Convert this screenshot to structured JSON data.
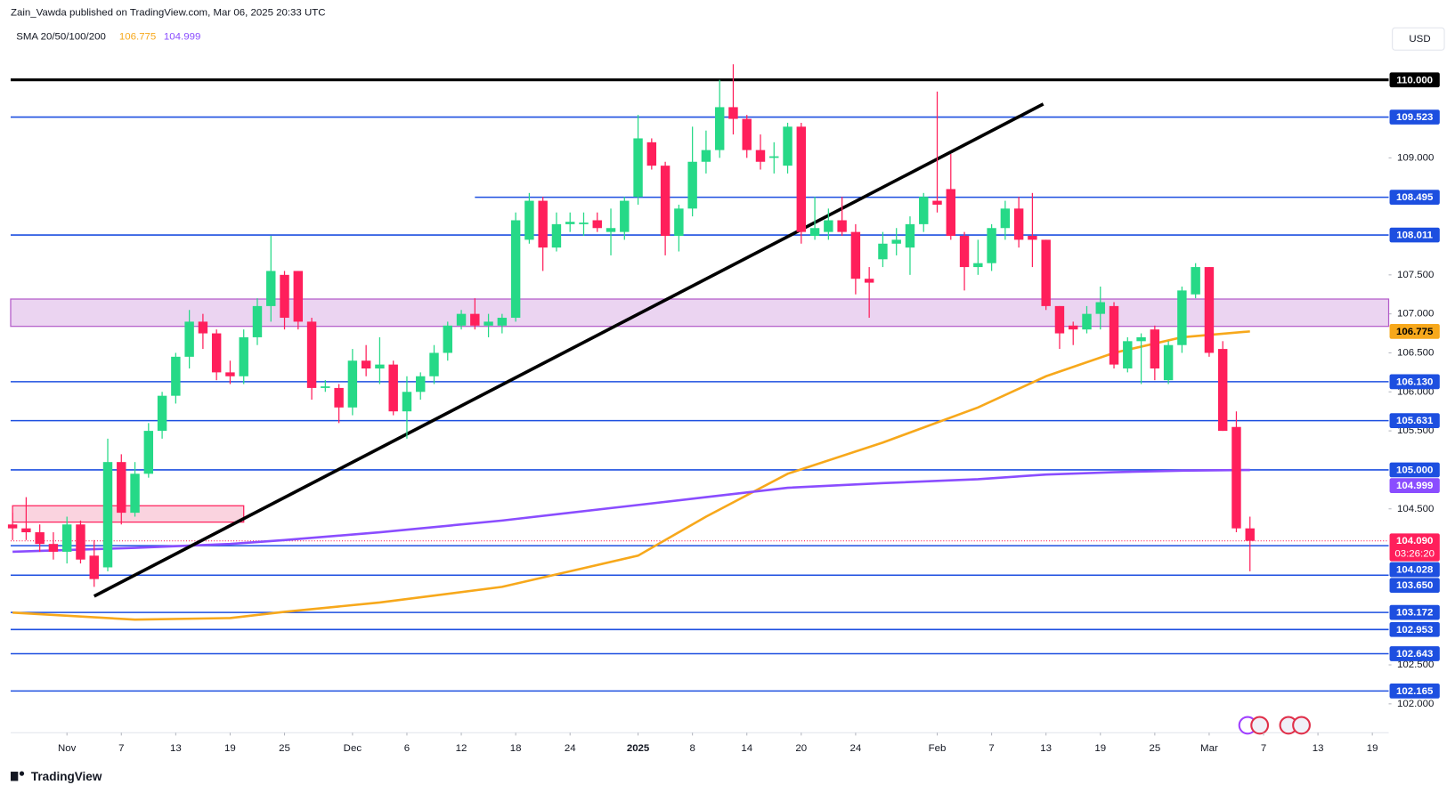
{
  "header": {
    "publisher": "Zain_Vawda published on TradingView.com, Mar 06, 2025 20:33 UTC",
    "indicator": "SMA 20/50/100/200",
    "currency": "USD"
  },
  "footer": {
    "brand": "TradingView"
  },
  "chart_data": {
    "type": "candlestick",
    "ylim": [
      101.63,
      110.37
    ],
    "xlim": [
      -0.14,
      101.2
    ],
    "yticks": [
      {
        "value": 102,
        "label": "102.000"
      },
      {
        "value": 102.5,
        "label": "102.500"
      },
      {
        "value": 104.5,
        "label": "104.500"
      },
      {
        "value": 105.5,
        "label": "105.500"
      },
      {
        "value": 106,
        "label": "106.000"
      },
      {
        "value": 106.5,
        "label": "106.500"
      },
      {
        "value": 107,
        "label": "107.000"
      },
      {
        "value": 107.5,
        "label": "107.500"
      },
      {
        "value": 109,
        "label": "109.000"
      }
    ],
    "xticks": [
      {
        "value": 4,
        "label": "Nov"
      },
      {
        "value": 8,
        "label": "7"
      },
      {
        "value": 12,
        "label": "13"
      },
      {
        "value": 16,
        "label": "19"
      },
      {
        "value": 20,
        "label": "25"
      },
      {
        "value": 25,
        "label": "Dec"
      },
      {
        "value": 29,
        "label": "6"
      },
      {
        "value": 33,
        "label": "12"
      },
      {
        "value": 37,
        "label": "18"
      },
      {
        "value": 41,
        "label": "24"
      },
      {
        "value": 46,
        "label": "2025"
      },
      {
        "value": 50,
        "label": "8"
      },
      {
        "value": 54,
        "label": "14"
      },
      {
        "value": 58,
        "label": "20"
      },
      {
        "value": 62,
        "label": "24"
      },
      {
        "value": 68,
        "label": "Feb"
      },
      {
        "value": 72,
        "label": "7"
      },
      {
        "value": 76,
        "label": "13"
      },
      {
        "value": 80,
        "label": "19"
      },
      {
        "value": 84,
        "label": "25"
      },
      {
        "value": 88,
        "label": "Mar"
      },
      {
        "value": 92,
        "label": "7"
      },
      {
        "value": 96,
        "label": "13"
      },
      {
        "value": 100,
        "label": "19"
      }
    ],
    "up_color": "#26d987",
    "down_color": "#ff1f5b",
    "candles": [
      [
        104.3,
        104.45,
        104.1,
        104.25
      ],
      [
        104.25,
        104.65,
        104.1,
        104.2
      ],
      [
        104.2,
        104.3,
        103.95,
        104.05
      ],
      [
        104.05,
        104.2,
        103.85,
        103.95
      ],
      [
        103.95,
        104.4,
        103.8,
        104.3
      ],
      [
        104.3,
        104.35,
        103.8,
        103.85
      ],
      [
        103.9,
        104.1,
        103.5,
        103.6
      ],
      [
        103.75,
        105.4,
        103.7,
        105.1
      ],
      [
        105.1,
        105.2,
        104.3,
        104.45
      ],
      [
        104.45,
        105.1,
        104.4,
        104.95
      ],
      [
        104.95,
        105.6,
        104.9,
        105.5
      ],
      [
        105.5,
        106.0,
        105.4,
        105.95
      ],
      [
        105.95,
        106.5,
        105.85,
        106.45
      ],
      [
        106.45,
        107.05,
        106.3,
        106.9
      ],
      [
        106.9,
        107.0,
        106.55,
        106.75
      ],
      [
        106.75,
        106.8,
        106.15,
        106.25
      ],
      [
        106.25,
        106.4,
        106.1,
        106.2
      ],
      [
        106.2,
        106.8,
        106.1,
        106.7
      ],
      [
        106.7,
        107.2,
        106.6,
        107.1
      ],
      [
        107.1,
        108.0,
        106.9,
        107.55
      ],
      [
        107.5,
        107.55,
        106.8,
        106.95
      ],
      [
        107.55,
        107.55,
        106.8,
        106.9
      ],
      [
        106.9,
        106.95,
        105.9,
        106.05
      ],
      [
        106.05,
        106.15,
        106.0,
        106.07
      ],
      [
        106.05,
        106.1,
        105.6,
        105.8
      ],
      [
        105.8,
        106.55,
        105.7,
        106.4
      ],
      [
        106.4,
        106.6,
        106.2,
        106.3
      ],
      [
        106.3,
        106.7,
        106.1,
        106.35
      ],
      [
        106.35,
        106.4,
        105.7,
        105.75
      ],
      [
        105.75,
        106.2,
        105.4,
        106.0
      ],
      [
        106.0,
        106.25,
        105.9,
        106.2
      ],
      [
        106.2,
        106.6,
        106.1,
        106.5
      ],
      [
        106.5,
        106.9,
        106.4,
        106.85
      ],
      [
        106.85,
        107.05,
        106.8,
        107.0
      ],
      [
        107.0,
        107.2,
        106.8,
        106.85
      ],
      [
        106.85,
        107.0,
        106.7,
        106.9
      ],
      [
        106.85,
        107.0,
        106.75,
        106.95
      ],
      [
        106.95,
        108.3,
        106.9,
        108.2
      ],
      [
        107.95,
        108.55,
        107.9,
        108.45
      ],
      [
        108.45,
        108.5,
        107.55,
        107.85
      ],
      [
        107.85,
        108.3,
        107.8,
        108.15
      ],
      [
        108.15,
        108.3,
        108.05,
        108.18
      ],
      [
        108.15,
        108.3,
        108.0,
        108.17
      ],
      [
        108.2,
        108.3,
        108.05,
        108.1
      ],
      [
        108.05,
        108.35,
        107.75,
        108.1
      ],
      [
        108.05,
        108.5,
        107.95,
        108.45
      ],
      [
        108.5,
        109.55,
        108.4,
        109.25
      ],
      [
        109.2,
        109.25,
        108.85,
        108.9
      ],
      [
        108.9,
        108.95,
        107.75,
        108.0
      ],
      [
        108.0,
        108.4,
        107.8,
        108.35
      ],
      [
        108.35,
        109.4,
        108.25,
        108.95
      ],
      [
        108.95,
        109.35,
        108.8,
        109.1
      ],
      [
        109.1,
        110.0,
        109.0,
        109.65
      ],
      [
        109.65,
        110.2,
        109.3,
        109.5
      ],
      [
        109.5,
        109.55,
        109.0,
        109.1
      ],
      [
        109.1,
        109.3,
        108.85,
        108.95
      ],
      [
        109.0,
        109.2,
        108.8,
        109.02
      ],
      [
        108.9,
        109.45,
        108.8,
        109.4
      ],
      [
        109.4,
        109.45,
        107.9,
        108.05
      ],
      [
        108.0,
        108.5,
        107.95,
        108.1
      ],
      [
        108.05,
        108.35,
        107.95,
        108.2
      ],
      [
        108.2,
        108.5,
        108.0,
        108.05
      ],
      [
        108.05,
        108.15,
        107.25,
        107.45
      ],
      [
        107.45,
        107.6,
        106.95,
        107.4
      ],
      [
        107.7,
        108.05,
        107.6,
        107.9
      ],
      [
        107.9,
        108.1,
        107.75,
        107.95
      ],
      [
        107.85,
        108.25,
        107.5,
        108.15
      ],
      [
        108.15,
        108.55,
        108.05,
        108.5
      ],
      [
        108.45,
        109.85,
        108.3,
        108.4
      ],
      [
        108.6,
        109.05,
        107.95,
        108.0
      ],
      [
        108.0,
        108.05,
        107.3,
        107.6
      ],
      [
        107.6,
        107.95,
        107.5,
        107.65
      ],
      [
        107.65,
        108.15,
        107.55,
        108.1
      ],
      [
        108.1,
        108.45,
        107.95,
        108.35
      ],
      [
        108.35,
        108.5,
        107.85,
        107.95
      ],
      [
        108.0,
        108.55,
        107.6,
        107.95
      ],
      [
        107.95,
        107.95,
        107.05,
        107.1
      ],
      [
        107.1,
        107.1,
        106.55,
        106.75
      ],
      [
        106.85,
        106.9,
        106.6,
        106.8
      ],
      [
        106.8,
        107.1,
        106.75,
        107.0
      ],
      [
        107.0,
        107.35,
        106.8,
        107.15
      ],
      [
        107.1,
        107.15,
        106.3,
        106.35
      ],
      [
        106.3,
        106.7,
        106.25,
        106.65
      ],
      [
        106.65,
        106.75,
        106.1,
        106.7
      ],
      [
        106.8,
        106.85,
        106.15,
        106.3
      ],
      [
        106.15,
        106.65,
        106.1,
        106.6
      ],
      [
        106.6,
        107.35,
        106.5,
        107.3
      ],
      [
        107.25,
        107.65,
        107.2,
        107.6
      ],
      [
        107.6,
        107.6,
        106.45,
        106.5
      ],
      [
        106.55,
        106.65,
        105.5,
        105.5
      ],
      [
        105.55,
        105.75,
        104.2,
        104.25
      ],
      [
        104.25,
        104.4,
        103.7,
        104.09
      ]
    ],
    "sma": {
      "x": [
        0,
        9,
        16,
        20,
        27,
        36,
        46,
        51,
        57,
        64,
        71,
        76,
        81,
        86,
        91
      ],
      "series": [
        {
          "color": "#f7a81b",
          "values": [
            103.17,
            103.08,
            103.1,
            103.18,
            103.3,
            103.5,
            103.9,
            104.4,
            104.95,
            105.35,
            105.8,
            106.2,
            106.5,
            106.7,
            106.775
          ],
          "value_label": "106.775"
        },
        {
          "color": "#8a4dff",
          "values": [
            103.95,
            104.0,
            104.05,
            104.1,
            104.2,
            104.35,
            104.55,
            104.65,
            104.77,
            104.83,
            104.88,
            104.94,
            104.97,
            104.99,
            104.999
          ],
          "value_label": "104.999"
        }
      ]
    },
    "levels": [
      {
        "value": 110,
        "label": "110.000",
        "color": "#000000"
      },
      {
        "value": 109.523,
        "label": "109.523",
        "color": "#1d4fe0"
      },
      {
        "value": 108.495,
        "label": "108.495",
        "color": "#1d4fe0",
        "start_bar": 34
      },
      {
        "value": 108.011,
        "label": "108.011",
        "color": "#1d4fe0"
      },
      {
        "value": 106.13,
        "label": "106.130",
        "color": "#1d4fe0"
      },
      {
        "value": 105.631,
        "label": "105.631",
        "color": "#1d4fe0"
      },
      {
        "value": 105,
        "label": "105.000",
        "color": "#1d4fe0"
      },
      {
        "value": 104.028,
        "label": "104.028",
        "color": "#1d4fe0"
      },
      {
        "value": 103.65,
        "label": "103.650",
        "color": "#1d4fe0"
      },
      {
        "value": 103.172,
        "label": "103.172",
        "color": "#1d4fe0"
      },
      {
        "value": 102.953,
        "label": "102.953",
        "color": "#1d4fe0"
      },
      {
        "value": 102.643,
        "label": "102.643",
        "color": "#1d4fe0"
      },
      {
        "value": 102.165,
        "label": "102.165",
        "color": "#1d4fe0"
      }
    ],
    "zones": [
      {
        "low": 106.84,
        "high": 107.19,
        "color": "#e4c6ec",
        "border": "#b35cc9"
      },
      {
        "low": 104.33,
        "high": 104.54,
        "color": "#f8c4d4",
        "border": "#ff1f5b",
        "start_bar": 0,
        "end_bar": 17
      }
    ],
    "trendline": [
      [
        6,
        103.38
      ],
      [
        75.8,
        109.69
      ]
    ],
    "last_price": {
      "value": 104.09,
      "label": "104.090",
      "countdown": "03:26:20"
    }
  }
}
